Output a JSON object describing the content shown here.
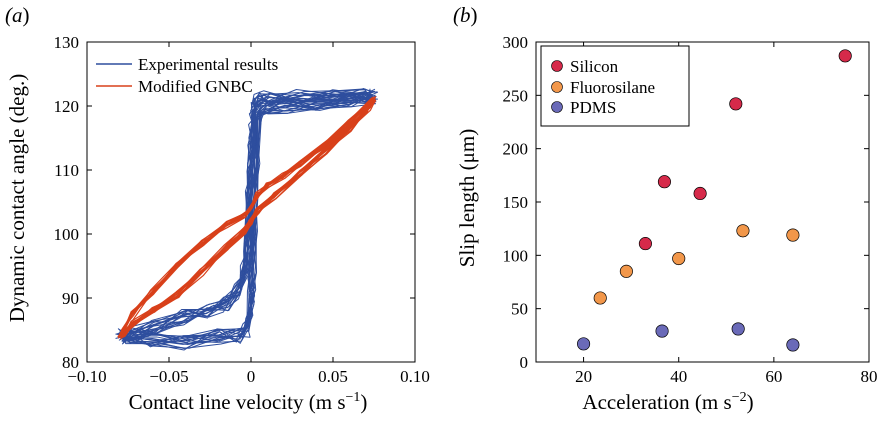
{
  "chart_data": [
    {
      "panel": "(a)",
      "panel_prefix": "(",
      "panel_letter": "a",
      "panel_suffix": ")",
      "type": "line",
      "xlabel": "Contact line velocity (m s",
      "xlabel_exp": "−1",
      "xlabel_close": ")",
      "ylabel": "Dynamic contact angle (deg.)",
      "xlim": [
        -0.1,
        0.1
      ],
      "ylim": [
        80,
        130
      ],
      "xticks": [
        -0.1,
        -0.05,
        0,
        0.05,
        0.1
      ],
      "xtick_labels": [
        "−0.10",
        "−0.05",
        "0",
        "0.05",
        "0.10"
      ],
      "yticks": [
        80,
        90,
        100,
        110,
        120,
        130
      ],
      "ytick_labels": [
        "80",
        "90",
        "100",
        "110",
        "120",
        "130"
      ],
      "legend_position": "top-left",
      "series": [
        {
          "name": "Experimental results",
          "color": "#2e4e9e",
          "cycles": 18,
          "x": [
            0.075,
            0.06,
            0.04,
            0.02,
            0.008,
            0.004,
            0.003,
            0.002,
            0.0015,
            0.001,
            0.0005,
            0.0,
            -0.001,
            -0.003,
            -0.008,
            -0.02,
            -0.04,
            -0.06,
            -0.075,
            -0.08,
            -0.075,
            -0.06,
            -0.04,
            -0.025,
            -0.015,
            -0.008,
            -0.004,
            -0.002,
            -0.0015,
            -0.001,
            0.0,
            0.0005,
            0.001,
            0.0015,
            0.002,
            0.004,
            0.01,
            0.03,
            0.05,
            0.07,
            0.075
          ],
          "y": [
            121.5,
            121.0,
            120.5,
            120.0,
            119.5,
            118.0,
            112.0,
            105.0,
            100.0,
            95.0,
            92.0,
            90.0,
            87.0,
            85.0,
            84.0,
            84.0,
            83.0,
            83.5,
            83.8,
            84.0,
            84.5,
            85.5,
            87.0,
            88.0,
            89.0,
            91.0,
            94.0,
            98.0,
            102.0,
            106.0,
            110.0,
            113.0,
            116.0,
            118.5,
            120.0,
            121.0,
            121.3,
            121.5,
            121.6,
            121.6,
            121.5
          ]
        },
        {
          "name": "Modified GNBC",
          "color": "#d8401a",
          "cycles": 12,
          "x": [
            0.075,
            0.06,
            0.045,
            0.03,
            0.02,
            0.01,
            0.004,
            0.0,
            -0.004,
            -0.015,
            -0.03,
            -0.045,
            -0.06,
            -0.072,
            -0.078,
            -0.08,
            -0.078,
            -0.072,
            -0.06,
            -0.045,
            -0.03,
            -0.015,
            -0.004,
            0.0,
            0.004,
            0.015,
            0.03,
            0.045,
            0.06,
            0.072,
            0.075
          ],
          "y": [
            121.0,
            117.5,
            114.0,
            111.0,
            109.0,
            107.5,
            106.0,
            104.0,
            103.0,
            101.5,
            98.5,
            95.0,
            91.0,
            87.5,
            85.0,
            84.0,
            84.5,
            86.0,
            88.0,
            90.5,
            94.0,
            98.0,
            100.5,
            102.0,
            103.5,
            106.0,
            109.5,
            113.0,
            116.5,
            119.5,
            121.0
          ]
        }
      ]
    },
    {
      "panel": "(b)",
      "panel_prefix": "(",
      "panel_letter": "b",
      "panel_suffix": ")",
      "type": "scatter",
      "xlabel": "Acceleration (m s",
      "xlabel_exp": "−2",
      "xlabel_close": ")",
      "ylabel": "Slip length (μm)",
      "xlim": [
        10,
        80
      ],
      "ylim": [
        0,
        300
      ],
      "xticks": [
        20,
        40,
        60,
        80
      ],
      "xtick_labels": [
        "20",
        "40",
        "60",
        "80"
      ],
      "yticks": [
        0,
        50,
        100,
        150,
        200,
        250,
        300
      ],
      "ytick_labels": [
        "0",
        "50",
        "100",
        "150",
        "200",
        "250",
        "300"
      ],
      "legend_position": "top-left",
      "series": [
        {
          "name": "Silicon",
          "color": "#d62a4a",
          "x": [
            33,
            37,
            44.5,
            52,
            75
          ],
          "y": [
            111,
            169,
            158,
            242,
            287
          ]
        },
        {
          "name": "Fluorosilane",
          "color": "#f2974a",
          "x": [
            23.5,
            29,
            40,
            53.5,
            64
          ],
          "y": [
            60,
            85,
            97,
            123,
            119
          ]
        },
        {
          "name": "PDMS",
          "color": "#6a6ab8",
          "x": [
            20,
            36.5,
            52.5,
            64
          ],
          "y": [
            17,
            29,
            31,
            16
          ]
        }
      ]
    }
  ]
}
